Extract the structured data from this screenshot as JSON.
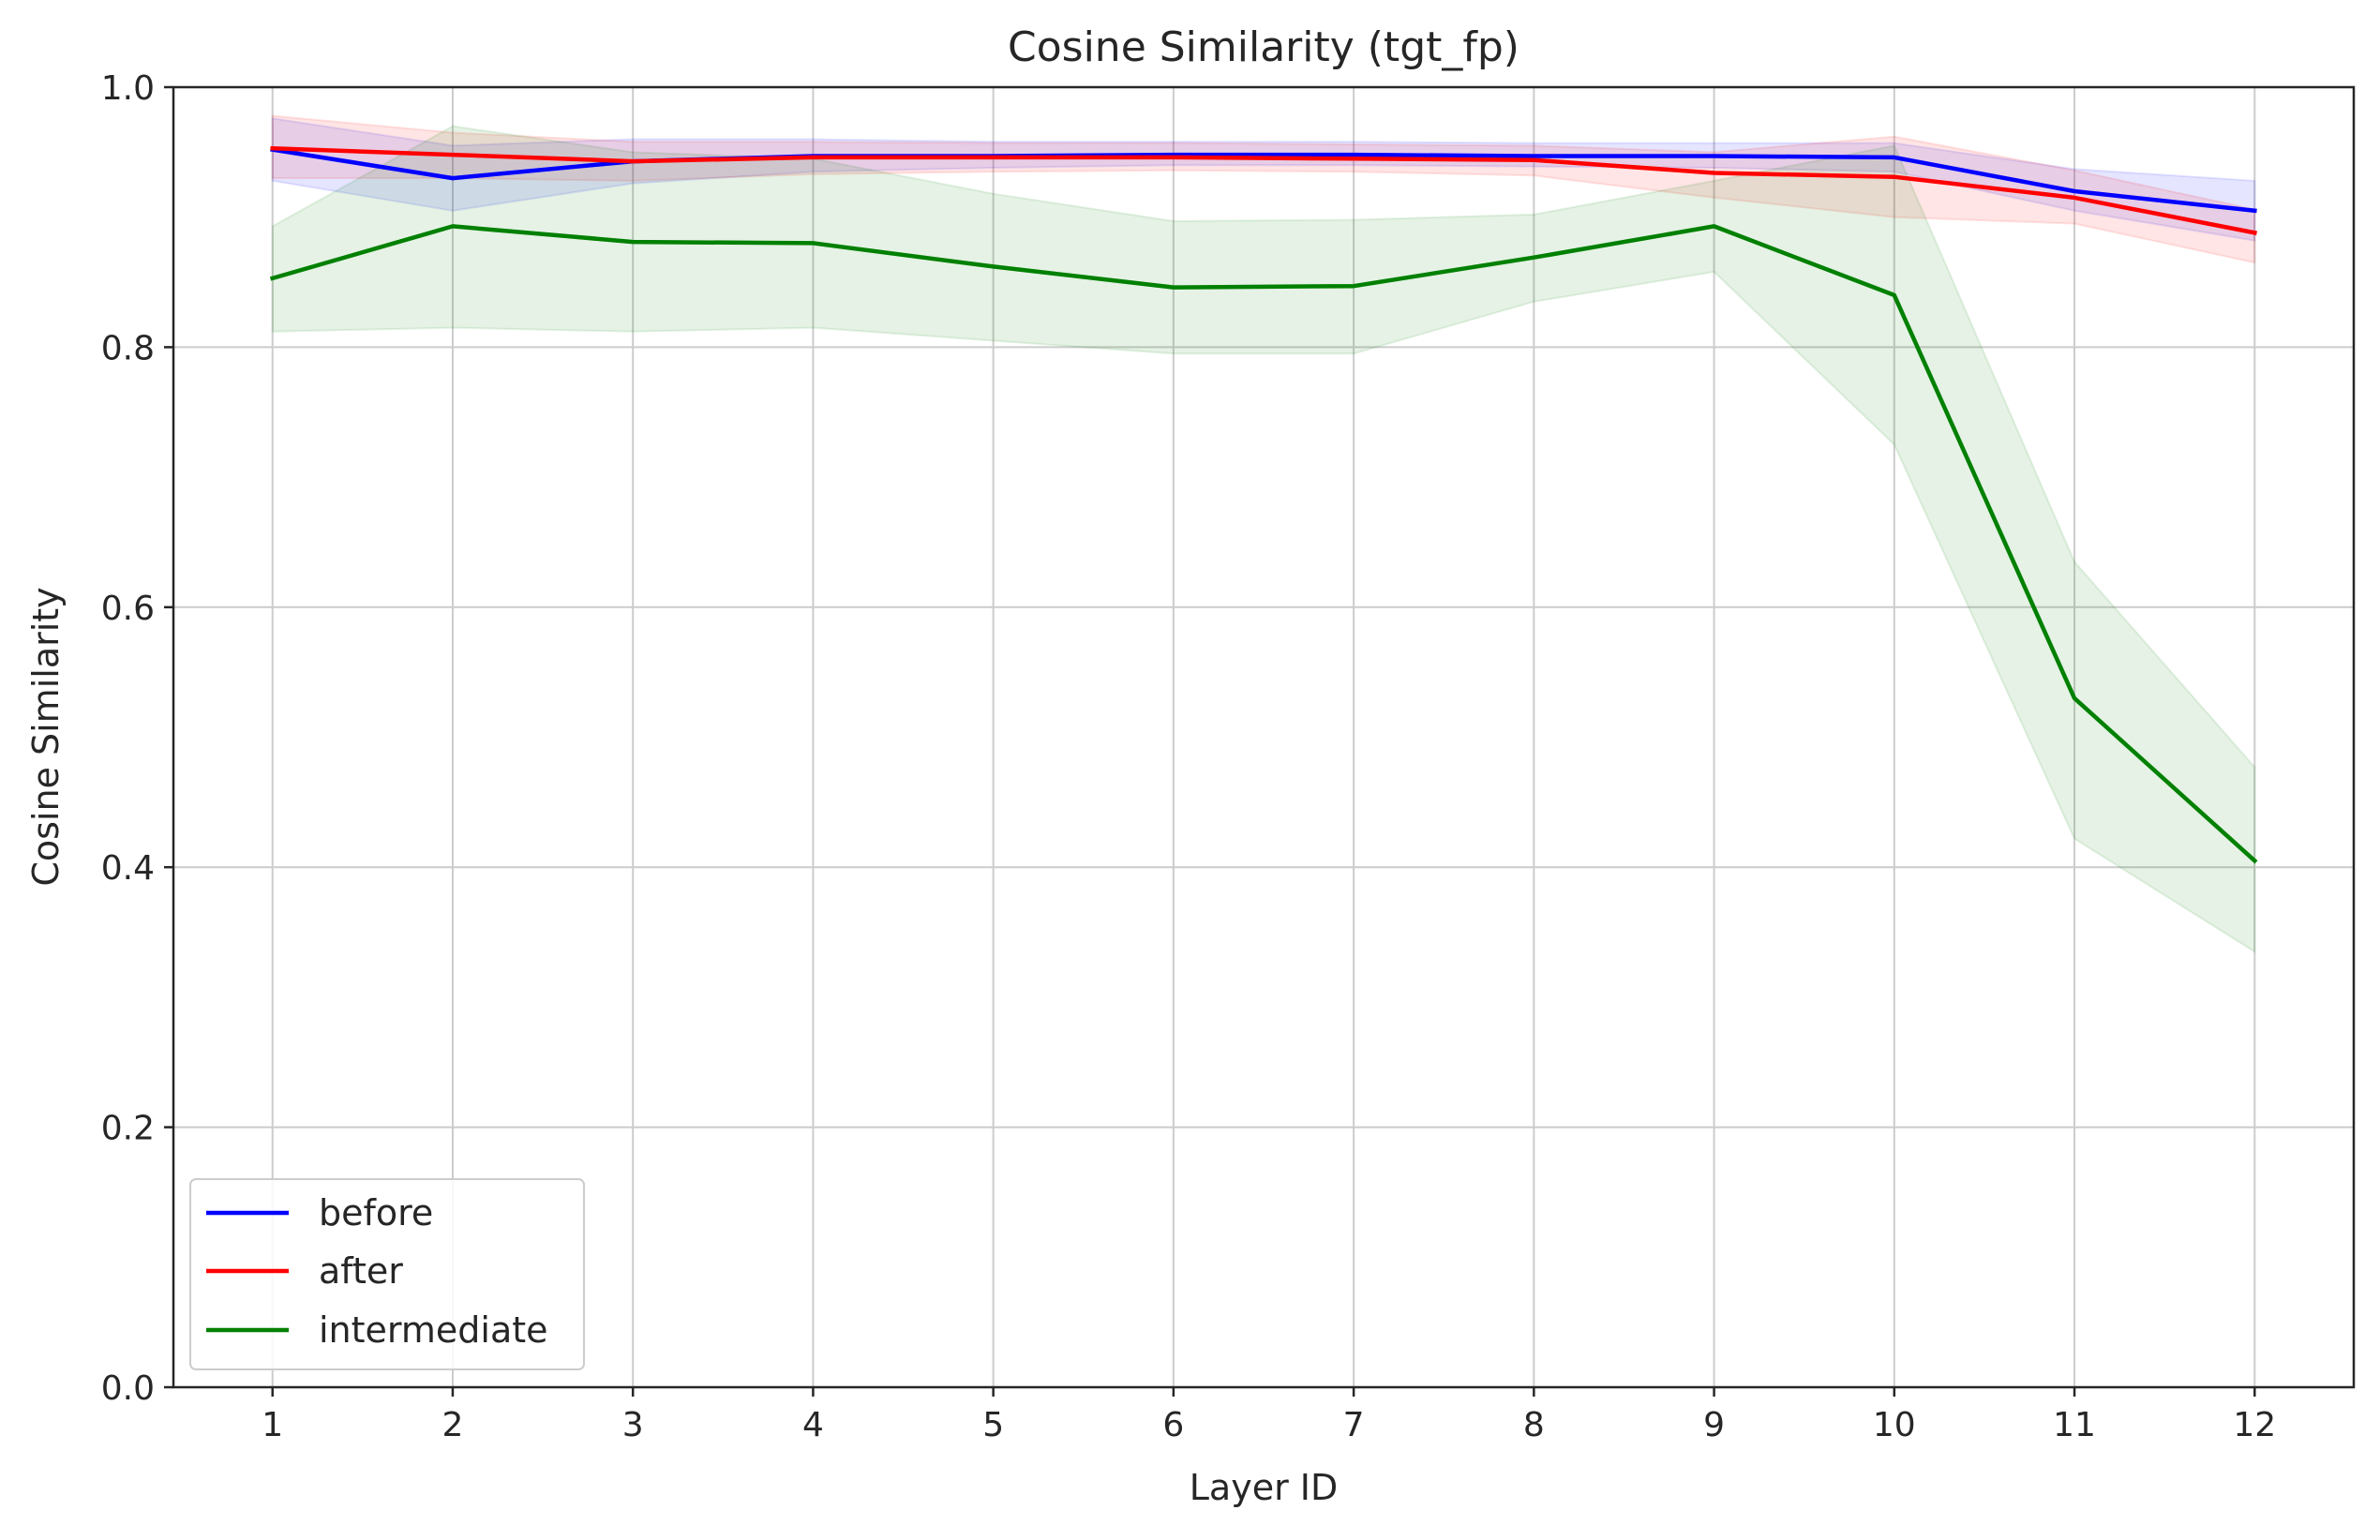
{
  "chart_data": {
    "type": "line",
    "title": "Cosine Similarity (tgt_fp)",
    "xlabel": "Layer ID",
    "ylabel": "Cosine Similarity",
    "x": [
      1,
      2,
      3,
      4,
      5,
      6,
      7,
      8,
      9,
      10,
      11,
      12
    ],
    "xlim": [
      0.45,
      12.55
    ],
    "ylim": [
      0.0,
      1.0
    ],
    "xticks": [
      1,
      2,
      3,
      4,
      5,
      6,
      7,
      8,
      9,
      10,
      11,
      12
    ],
    "yticks": [
      "0.0",
      "0.2",
      "0.4",
      "0.6",
      "0.8",
      "1.0"
    ],
    "grid": true,
    "legend_position": "lower-left",
    "series": [
      {
        "name": "before",
        "color": "#0000ff",
        "values": [
          0.952,
          0.93,
          0.943,
          0.947,
          0.947,
          0.948,
          0.948,
          0.947,
          0.947,
          0.946,
          0.92,
          0.905
        ],
        "lower": [
          0.928,
          0.905,
          0.926,
          0.935,
          0.938,
          0.94,
          0.94,
          0.939,
          0.938,
          0.935,
          0.905,
          0.882
        ],
        "upper": [
          0.976,
          0.955,
          0.96,
          0.96,
          0.958,
          0.958,
          0.958,
          0.957,
          0.957,
          0.957,
          0.937,
          0.928
        ]
      },
      {
        "name": "after",
        "color": "#ff0000",
        "values": [
          0.953,
          0.948,
          0.943,
          0.946,
          0.946,
          0.946,
          0.945,
          0.944,
          0.934,
          0.931,
          0.915,
          0.888
        ],
        "lower": [
          0.93,
          0.93,
          0.928,
          0.933,
          0.935,
          0.936,
          0.935,
          0.932,
          0.915,
          0.9,
          0.895,
          0.865
        ],
        "upper": [
          0.978,
          0.965,
          0.958,
          0.958,
          0.957,
          0.957,
          0.956,
          0.955,
          0.95,
          0.962,
          0.936,
          0.906
        ]
      },
      {
        "name": "intermediate",
        "color": "#008000",
        "values": [
          0.853,
          0.893,
          0.881,
          0.88,
          0.862,
          0.846,
          0.847,
          0.869,
          0.893,
          0.84,
          0.53,
          0.405
        ],
        "lower": [
          0.812,
          0.815,
          0.812,
          0.815,
          0.805,
          0.795,
          0.795,
          0.835,
          0.858,
          0.725,
          0.422,
          0.335
        ],
        "upper": [
          0.893,
          0.97,
          0.95,
          0.945,
          0.918,
          0.897,
          0.898,
          0.902,
          0.928,
          0.955,
          0.635,
          0.477
        ]
      }
    ]
  }
}
